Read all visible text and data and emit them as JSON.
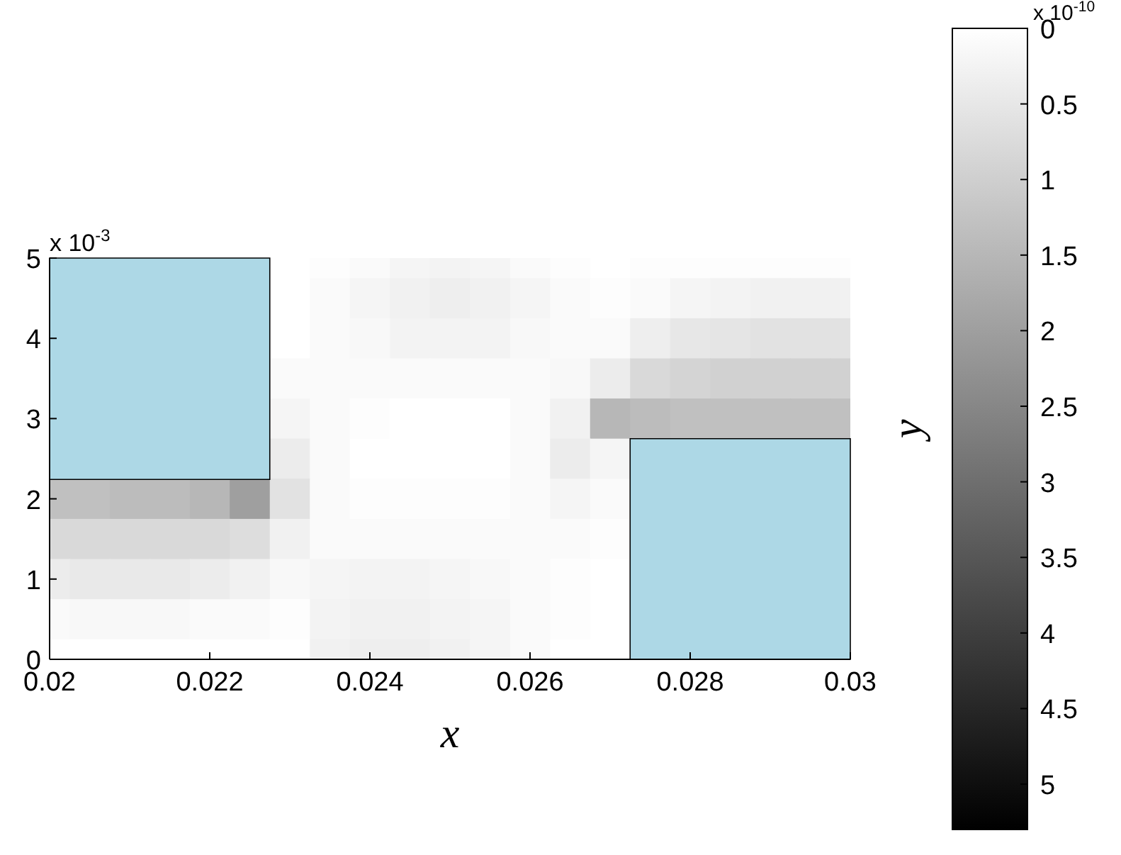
{
  "chart_data": {
    "type": "heatmap",
    "xlabel": "x",
    "ylabel": "y",
    "clabel": "x 10$^{-10}$",
    "annotations": [
      "x 10$^{-3}$"
    ],
    "categories": [
      "0.02",
      null,
      null,
      null,
      "0.022",
      null,
      null,
      null,
      "0.024",
      null,
      null,
      null,
      "0.026",
      null,
      null,
      null,
      "0.028",
      null,
      null,
      null,
      "0.03"
    ],
    "y_categories": [
      "5",
      null,
      "4",
      null,
      "3",
      null,
      "2",
      null,
      "1",
      null,
      "0"
    ],
    "clim": [
      0,
      5.3
    ],
    "cticks": [
      0,
      0.5,
      1,
      1.5,
      2,
      2.5,
      3,
      3.5,
      4,
      4.5,
      5
    ],
    "cells": [
      [
        null,
        null,
        null,
        null,
        null,
        null,
        0,
        0.05,
        0.1,
        0.2,
        0.25,
        0.2,
        0.1,
        0.05,
        0,
        0.05,
        0.05,
        0.05,
        0.05,
        0.05,
        0.05
      ],
      [
        null,
        null,
        null,
        null,
        null,
        null,
        0,
        0.1,
        0.2,
        0.3,
        0.35,
        0.3,
        0.2,
        0.1,
        0.05,
        0.1,
        0.2,
        0.25,
        0.3,
        0.3,
        0.3
      ],
      [
        null,
        null,
        null,
        null,
        null,
        null,
        0,
        0.1,
        0.15,
        0.25,
        0.25,
        0.25,
        0.15,
        0.1,
        0.1,
        0.35,
        0.5,
        0.55,
        0.6,
        0.6,
        0.6
      ],
      [
        null,
        null,
        null,
        null,
        null,
        null,
        0.1,
        0.1,
        0.1,
        0.1,
        0.1,
        0.1,
        0.1,
        0.15,
        0.4,
        0.8,
        0.9,
        0.95,
        0.95,
        0.95,
        0.95
      ],
      [
        null,
        null,
        null,
        null,
        null,
        null,
        0.2,
        0.1,
        0.05,
        0,
        0,
        0,
        0.1,
        0.3,
        1.5,
        1.4,
        1.3,
        1.3,
        1.3,
        1.3,
        1.3
      ],
      [
        null,
        null,
        null,
        null,
        null,
        null,
        0.4,
        0.1,
        0,
        0,
        0,
        0,
        0.1,
        0.4,
        0.2,
        null,
        null,
        null,
        null,
        null,
        null
      ],
      [
        1.3,
        1.3,
        1.4,
        1.4,
        1.5,
        2.0,
        0.6,
        0.1,
        0.05,
        0.05,
        0.05,
        0.05,
        0.1,
        0.2,
        0.1,
        null,
        null,
        null,
        null,
        null,
        null
      ],
      [
        0.8,
        0.8,
        0.8,
        0.8,
        0.8,
        0.7,
        0.3,
        0.1,
        0.1,
        0.1,
        0.1,
        0.1,
        0.1,
        0.1,
        0.05,
        null,
        null,
        null,
        null,
        null,
        null
      ],
      [
        0.4,
        0.45,
        0.45,
        0.45,
        0.4,
        0.3,
        0.15,
        0.2,
        0.25,
        0.25,
        0.2,
        0.15,
        0.1,
        0.05,
        0,
        null,
        null,
        null,
        null,
        null,
        null
      ],
      [
        0.1,
        0.15,
        0.15,
        0.15,
        0.1,
        0.1,
        0.05,
        0.25,
        0.3,
        0.3,
        0.25,
        0.2,
        0.1,
        0.05,
        0,
        null,
        null,
        null,
        null,
        null,
        null
      ],
      [
        0,
        0,
        0,
        0,
        0,
        0,
        0,
        0.3,
        0.35,
        0.35,
        0.3,
        0.2,
        0.1,
        0,
        0,
        null,
        null,
        null,
        null,
        null,
        null
      ]
    ]
  }
}
